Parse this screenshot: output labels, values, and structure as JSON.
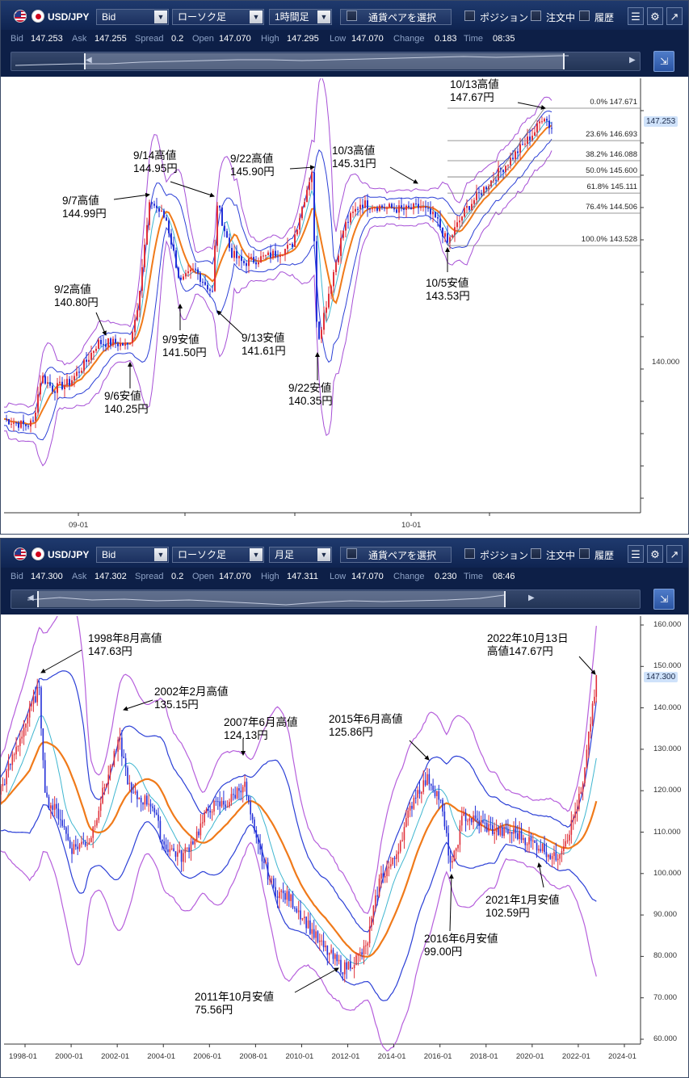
{
  "panels": [
    {
      "toolbar": {
        "symbol": "USD/JPY",
        "price_type": "Bid",
        "chart_type": "ローソク足",
        "timeframe": "1時間足",
        "pair_select_label": "通貨ペアを選択",
        "position_label": "ポジション",
        "orders_label": "注文中",
        "history_label": "履歴"
      },
      "quote": {
        "bid_label": "Bid",
        "bid": "147.253",
        "ask_label": "Ask",
        "ask": "147.255",
        "spread_label": "Spread",
        "spread": "0.2",
        "open_label": "Open",
        "open": "147.070",
        "high_label": "High",
        "high": "147.295",
        "low_label": "Low",
        "low": "147.070",
        "change_label": "Change",
        "change": "0.183",
        "time_label": "Time",
        "time": "08:35"
      },
      "current_price": "147.253",
      "axis": {
        "y_label": "140.000",
        "x_labels": [
          "09-01",
          "10-01"
        ]
      },
      "fibonacci": [
        {
          "pct": "0.0%",
          "price": "147.671"
        },
        {
          "pct": "23.6%",
          "price": "146.693"
        },
        {
          "pct": "38.2%",
          "price": "146.088"
        },
        {
          "pct": "50.0%",
          "price": "145.600"
        },
        {
          "pct": "61.8%",
          "price": "145.111"
        },
        {
          "pct": "76.4%",
          "price": "144.506"
        },
        {
          "pct": "100.0%",
          "price": "143.528"
        }
      ],
      "annotations": [
        {
          "line1": "10/13高値",
          "line2": "147.67円"
        },
        {
          "line1": "9/14高値",
          "line2": "144.95円"
        },
        {
          "line1": "9/22高値",
          "line2": "145.90円"
        },
        {
          "line1": "10/3高値",
          "line2": "145.31円"
        },
        {
          "line1": "9/7高値",
          "line2": "144.99円"
        },
        {
          "line1": "9/2高値",
          "line2": "140.80円"
        },
        {
          "line1": "10/5安値",
          "line2": "143.53円"
        },
        {
          "line1": "9/9安値",
          "line2": "141.50円"
        },
        {
          "line1": "9/13安値",
          "line2": "141.61円"
        },
        {
          "line1": "9/6安値",
          "line2": "140.25円"
        },
        {
          "line1": "9/22安値",
          "line2": "140.35円"
        }
      ]
    },
    {
      "toolbar": {
        "symbol": "USD/JPY",
        "price_type": "Bid",
        "chart_type": "ローソク足",
        "timeframe": "月足",
        "pair_select_label": "通貨ペアを選択",
        "position_label": "ポジション",
        "orders_label": "注文中",
        "history_label": "履歴"
      },
      "quote": {
        "bid_label": "Bid",
        "bid": "147.300",
        "ask_label": "Ask",
        "ask": "147.302",
        "spread_label": "Spread",
        "spread": "0.2",
        "open_label": "Open",
        "open": "147.070",
        "high_label": "High",
        "high": "147.311",
        "low_label": "Low",
        "low": "147.070",
        "change_label": "Change",
        "change": "0.230",
        "time_label": "Time",
        "time": "08:46"
      },
      "current_price": "147.300",
      "axis": {
        "y_labels": [
          "160.000",
          "150.000",
          "140.000",
          "130.000",
          "120.000",
          "110.000",
          "100.000",
          "90.000",
          "80.000",
          "70.000",
          "60.000"
        ],
        "x_labels": [
          "1998-01",
          "2000-01",
          "2002-01",
          "2004-01",
          "2006-01",
          "2008-01",
          "2010-01",
          "2012-01",
          "2014-01",
          "2016-01",
          "2018-01",
          "2020-01",
          "2022-01",
          "2024-01"
        ]
      },
      "annotations": [
        {
          "line1": "1998年8月高値",
          "line2": "147.63円"
        },
        {
          "line1": "2002年2月高値",
          "line2": "135.15円"
        },
        {
          "line1": "2007年6月高値",
          "line2": "124.13円"
        },
        {
          "line1": "2015年6月高値",
          "line2": "125.86円"
        },
        {
          "line1": "2022年10月13日",
          "line2": "高値147.67円"
        },
        {
          "line1": "2021年1月安値",
          "line2": "102.59円"
        },
        {
          "line1": "2016年6月安値",
          "line2": "99.00円"
        },
        {
          "line1": "2011年10月安値",
          "line2": "75.56円"
        }
      ]
    }
  ],
  "chart_data": [
    {
      "type": "candlestick",
      "timeframe": "1時間足",
      "x_ticks": [
        "09-01",
        "10-01"
      ],
      "y_ticks": [
        140.0
      ],
      "key_points": [
        {
          "label": "9/2高値",
          "value": 140.8
        },
        {
          "label": "9/6安値",
          "value": 140.25
        },
        {
          "label": "9/7高値",
          "value": 144.99
        },
        {
          "label": "9/9安値",
          "value": 141.5
        },
        {
          "label": "9/13安値",
          "value": 141.61
        },
        {
          "label": "9/14高値",
          "value": 144.95
        },
        {
          "label": "9/22高値",
          "value": 145.9
        },
        {
          "label": "9/22安値",
          "value": 140.35
        },
        {
          "label": "10/3高値",
          "value": 145.31
        },
        {
          "label": "10/5安値",
          "value": 143.53
        },
        {
          "label": "10/13高値",
          "value": 147.67
        }
      ],
      "fibonacci": [
        {
          "level": 0.0,
          "price": 147.671
        },
        {
          "level": 23.6,
          "price": 146.693
        },
        {
          "level": 38.2,
          "price": 146.088
        },
        {
          "level": 50.0,
          "price": 145.6
        },
        {
          "level": 61.8,
          "price": 145.111
        },
        {
          "level": 76.4,
          "price": 144.506
        },
        {
          "level": 100.0,
          "price": 143.528
        }
      ],
      "last": 147.253
    },
    {
      "type": "candlestick",
      "timeframe": "月足",
      "x_ticks": [
        "1998-01",
        "2000-01",
        "2002-01",
        "2004-01",
        "2006-01",
        "2008-01",
        "2010-01",
        "2012-01",
        "2014-01",
        "2016-01",
        "2018-01",
        "2020-01",
        "2022-01",
        "2024-01"
      ],
      "ylim": [
        60,
        160
      ],
      "key_points": [
        {
          "label": "1998年8月高値",
          "value": 147.63
        },
        {
          "label": "2002年2月高値",
          "value": 135.15
        },
        {
          "label": "2007年6月高値",
          "value": 124.13
        },
        {
          "label": "2011年10月安値",
          "value": 75.56
        },
        {
          "label": "2015年6月高値",
          "value": 125.86
        },
        {
          "label": "2016年6月安値",
          "value": 99.0
        },
        {
          "label": "2021年1月安値",
          "value": 102.59
        },
        {
          "label": "2022年10月13日 高値",
          "value": 147.67
        }
      ],
      "last": 147.3
    }
  ]
}
